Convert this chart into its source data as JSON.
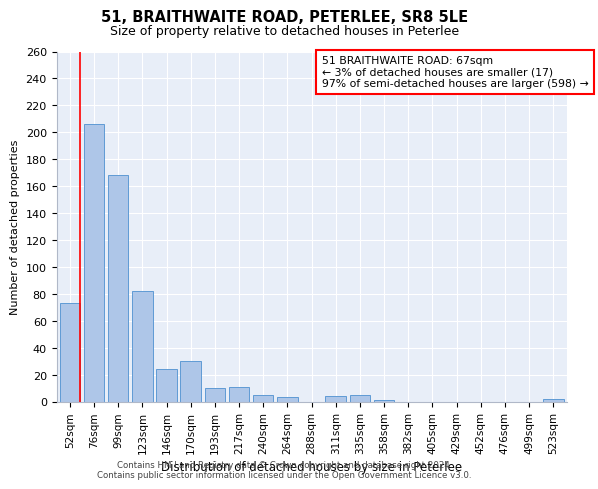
{
  "title": "51, BRAITHWAITE ROAD, PETERLEE, SR8 5LE",
  "subtitle": "Size of property relative to detached houses in Peterlee",
  "xlabel": "Distribution of detached houses by size in Peterlee",
  "ylabel": "Number of detached properties",
  "categories": [
    "52sqm",
    "76sqm",
    "99sqm",
    "123sqm",
    "146sqm",
    "170sqm",
    "193sqm",
    "217sqm",
    "240sqm",
    "264sqm",
    "288sqm",
    "311sqm",
    "335sqm",
    "358sqm",
    "382sqm",
    "405sqm",
    "429sqm",
    "452sqm",
    "476sqm",
    "499sqm",
    "523sqm"
  ],
  "values": [
    73,
    206,
    168,
    82,
    24,
    30,
    10,
    11,
    5,
    3,
    0,
    4,
    5,
    1,
    0,
    0,
    0,
    0,
    0,
    0,
    2
  ],
  "bar_color": "#aec6e8",
  "bar_edge_color": "#5f9bd5",
  "annotation_title": "51 BRAITHWAITE ROAD: 67sqm",
  "annotation_line1": "← 3% of detached houses are smaller (17)",
  "annotation_line2": "97% of semi-detached houses are larger (598) →",
  "vline_x_index": 0.42,
  "ylim": [
    0,
    260
  ],
  "yticks": [
    0,
    20,
    40,
    60,
    80,
    100,
    120,
    140,
    160,
    180,
    200,
    220,
    240,
    260
  ],
  "background_color": "#e8eef8",
  "grid_color": "#ffffff",
  "footer_line1": "Contains HM Land Registry data © Crown copyright and database right 2024.",
  "footer_line2": "Contains public sector information licensed under the Open Government Licence v3.0."
}
